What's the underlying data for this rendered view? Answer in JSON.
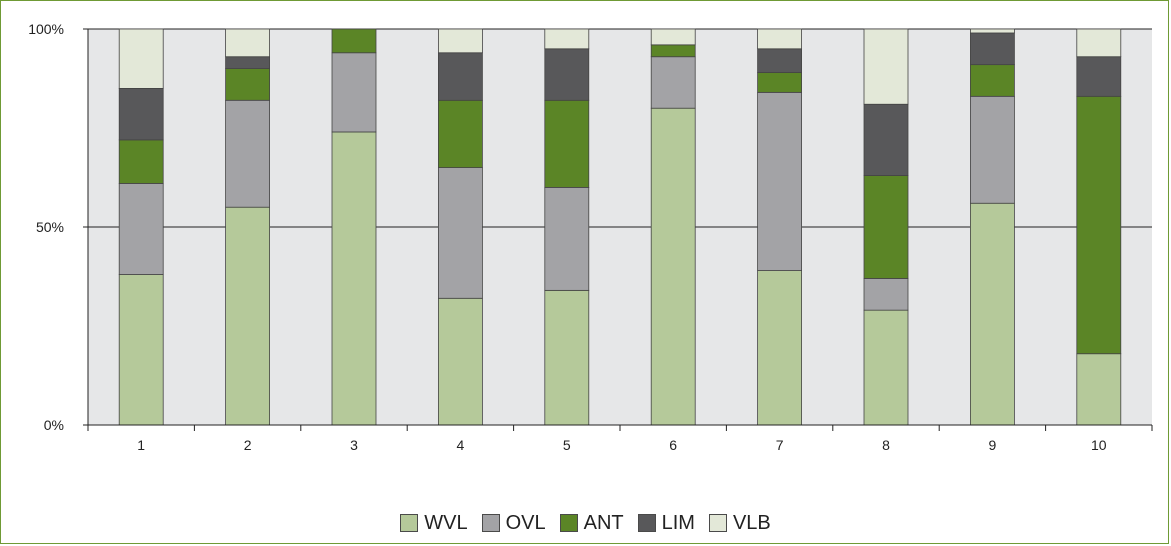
{
  "chart_data": {
    "type": "bar",
    "stacked": true,
    "title": "",
    "xlabel": "",
    "ylabel": "",
    "ylim": [
      0,
      100
    ],
    "y_ticks": [
      "0%",
      "50%",
      "100%"
    ],
    "y_tick_values": [
      0,
      50,
      100
    ],
    "grid": "horizontal",
    "legend_position": "bottom",
    "categories": [
      "1",
      "2",
      "3",
      "4",
      "5",
      "6",
      "7",
      "8",
      "9",
      "10"
    ],
    "series": [
      {
        "name": "WVL",
        "color": "#b5c99a",
        "values": [
          38,
          55,
          74,
          32,
          34,
          80,
          39,
          29,
          56,
          18
        ]
      },
      {
        "name": "OVL",
        "color": "#a3a3a6",
        "values": [
          23,
          27,
          20,
          33,
          26,
          13,
          45,
          8,
          27,
          0
        ]
      },
      {
        "name": "ANT",
        "color": "#5b8526",
        "values": [
          11,
          8,
          6,
          17,
          22,
          3,
          5,
          26,
          8,
          65
        ]
      },
      {
        "name": "LIM",
        "color": "#58585a",
        "values": [
          13,
          3,
          0,
          12,
          13,
          0,
          6,
          18,
          8,
          10
        ]
      },
      {
        "name": "VLB",
        "color": "#e3e8d8",
        "values": [
          15,
          7,
          0,
          6,
          5,
          4,
          5,
          19,
          1,
          7
        ]
      }
    ]
  }
}
